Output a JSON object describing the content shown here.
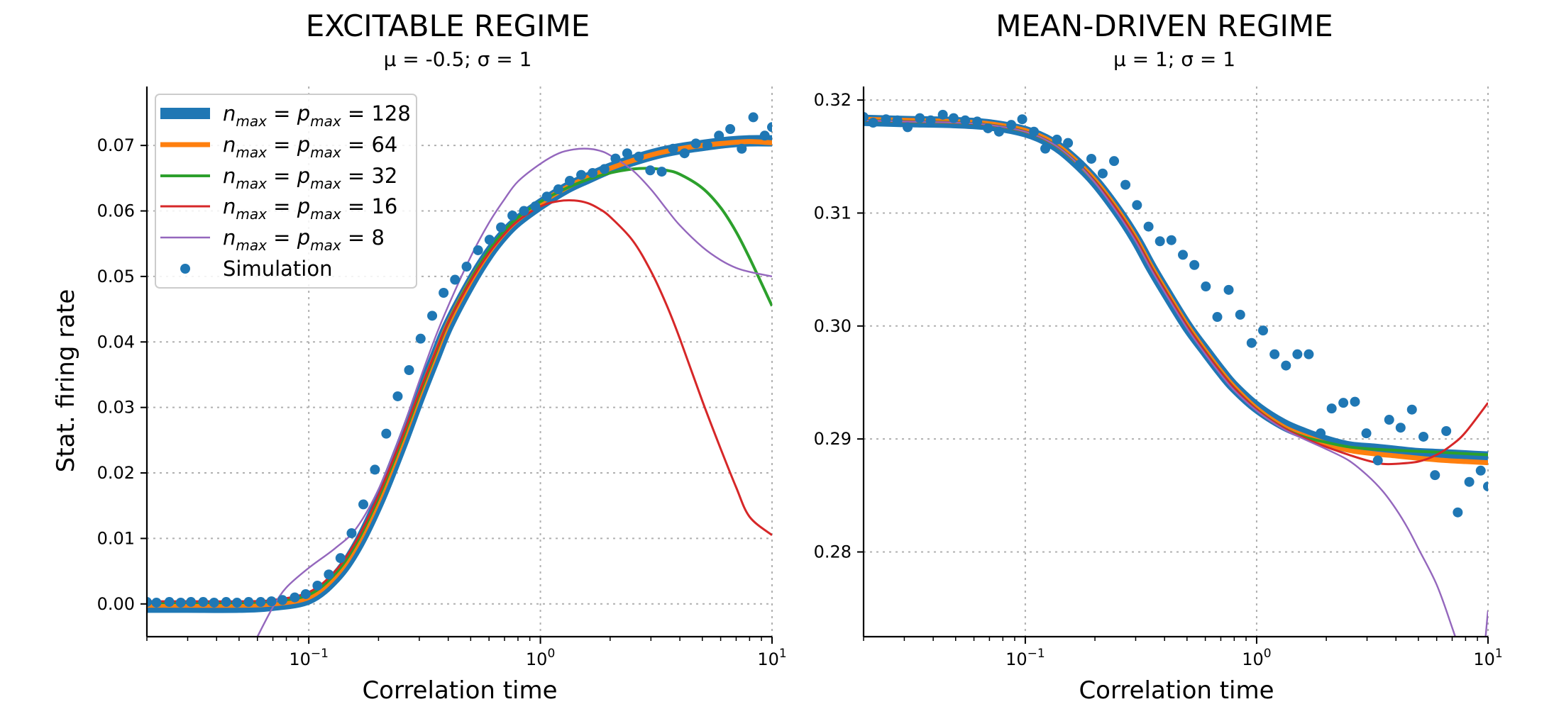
{
  "chart_data": [
    {
      "type": "line",
      "title": "EXCITABLE REGIME",
      "subtitle": "μ = -0.5; σ = 1",
      "xlabel": "Correlation time",
      "ylabel": "Stat. firing rate",
      "xscale": "log",
      "xlim": [
        0.02,
        10
      ],
      "ylim": [
        -0.005,
        0.079
      ],
      "xticks": [
        {
          "value": 0.1,
          "base": "10",
          "exp": "−1"
        },
        {
          "value": 1,
          "base": "10",
          "exp": "0"
        },
        {
          "value": 10,
          "base": "10",
          "exp": "1"
        }
      ],
      "yticks": [
        "0.00",
        "0.01",
        "0.02",
        "0.03",
        "0.04",
        "0.05",
        "0.06",
        "0.07"
      ],
      "grid": true,
      "legend": "upper-left",
      "series": [
        {
          "name": "n_max = p_max = 128",
          "name_parts": {
            "n": "n",
            "sub": "max",
            "p": "p",
            "val": "128"
          },
          "color": "#1f77b4",
          "width": 16,
          "x": [
            0.02,
            0.03,
            0.05,
            0.07,
            0.1,
            0.13,
            0.16,
            0.2,
            0.25,
            0.3,
            0.35,
            0.4,
            0.5,
            0.6,
            0.7,
            0.8,
            1.0,
            1.3,
            1.6,
            2.0,
            2.5,
            3.2,
            4.0,
            5.0,
            6.5,
            8.0,
            10.0
          ],
          "y": [
            -0.0005,
            -0.0005,
            -0.0005,
            -0.0002,
            0.0008,
            0.004,
            0.0085,
            0.0155,
            0.024,
            0.0315,
            0.0375,
            0.0425,
            0.049,
            0.0535,
            0.0565,
            0.0585,
            0.061,
            0.0635,
            0.065,
            0.0665,
            0.0677,
            0.0688,
            0.0695,
            0.07,
            0.0705,
            0.0707,
            0.0707
          ]
        },
        {
          "name": "n_max = p_max = 64",
          "name_parts": {
            "n": "n",
            "sub": "max",
            "p": "p",
            "val": "64"
          },
          "color": "#ff7f0e",
          "width": 7,
          "x": [
            0.02,
            0.03,
            0.05,
            0.07,
            0.1,
            0.13,
            0.16,
            0.2,
            0.25,
            0.3,
            0.35,
            0.4,
            0.5,
            0.6,
            0.7,
            0.8,
            1.0,
            1.3,
            1.6,
            2.0,
            2.5,
            3.2,
            4.0,
            5.0,
            6.5,
            8.0,
            10.0
          ],
          "y": [
            -0.0002,
            -0.0002,
            -0.0002,
            0.0,
            0.001,
            0.0042,
            0.0088,
            0.0158,
            0.0243,
            0.0318,
            0.0378,
            0.0428,
            0.0493,
            0.0537,
            0.0567,
            0.0587,
            0.0612,
            0.0636,
            0.0651,
            0.0665,
            0.0677,
            0.0688,
            0.0695,
            0.07,
            0.0704,
            0.0706,
            0.0704
          ]
        },
        {
          "name": "n_max = p_max = 32",
          "name_parts": {
            "n": "n",
            "sub": "max",
            "p": "p",
            "val": "32"
          },
          "color": "#2ca02c",
          "width": 4,
          "x": [
            0.02,
            0.03,
            0.05,
            0.07,
            0.1,
            0.13,
            0.16,
            0.2,
            0.25,
            0.3,
            0.35,
            0.4,
            0.5,
            0.6,
            0.7,
            0.8,
            1.0,
            1.3,
            1.6,
            2.0,
            2.5,
            3.0,
            3.5,
            4.0,
            5.0,
            6.0,
            7.0,
            8.0,
            10.0
          ],
          "y": [
            0.0002,
            0.0002,
            0.0002,
            0.0004,
            0.0014,
            0.0046,
            0.0092,
            0.0162,
            0.0246,
            0.032,
            0.038,
            0.043,
            0.0495,
            0.054,
            0.057,
            0.059,
            0.0614,
            0.0635,
            0.0648,
            0.0658,
            0.0664,
            0.0665,
            0.0662,
            0.0656,
            0.0635,
            0.0605,
            0.0568,
            0.0528,
            0.0455
          ]
        },
        {
          "name": "n_max = p_max = 16",
          "name_parts": {
            "n": "n",
            "sub": "max",
            "p": "p",
            "val": "16"
          },
          "color": "#d62728",
          "width": 3,
          "x": [
            0.02,
            0.03,
            0.05,
            0.07,
            0.1,
            0.13,
            0.16,
            0.2,
            0.25,
            0.3,
            0.35,
            0.4,
            0.5,
            0.6,
            0.7,
            0.8,
            1.0,
            1.2,
            1.4,
            1.6,
            1.8,
            2.0,
            2.5,
            3.0,
            3.5,
            4.0,
            5.0,
            6.0,
            7.0,
            8.0,
            10.0
          ],
          "y": [
            0.0004,
            0.0004,
            0.0004,
            0.0006,
            0.0018,
            0.005,
            0.0096,
            0.0166,
            0.025,
            0.0323,
            0.0382,
            0.043,
            0.0493,
            0.0536,
            0.0565,
            0.0585,
            0.0607,
            0.0615,
            0.0616,
            0.0612,
            0.0603,
            0.0591,
            0.0555,
            0.0508,
            0.0457,
            0.0405,
            0.031,
            0.0237,
            0.0178,
            0.0133,
            0.0105
          ]
        },
        {
          "name": "n_max = p_max = 8",
          "name_parts": {
            "n": "n",
            "sub": "max",
            "p": "p",
            "val": "8"
          },
          "color": "#9467bd",
          "width": 2.4,
          "x": [
            0.06,
            0.07,
            0.08,
            0.1,
            0.13,
            0.16,
            0.2,
            0.25,
            0.3,
            0.35,
            0.4,
            0.5,
            0.6,
            0.7,
            0.8,
            1.0,
            1.2,
            1.4,
            1.6,
            1.8,
            2.0,
            2.5,
            3.0,
            3.5,
            4.0,
            5.0,
            6.0,
            7.0,
            8.0,
            10.0
          ],
          "y": [
            -0.005,
            -0.0005,
            0.0025,
            0.0055,
            0.0085,
            0.0115,
            0.0175,
            0.026,
            0.034,
            0.0405,
            0.0455,
            0.053,
            0.0582,
            0.0618,
            0.0645,
            0.0672,
            0.0688,
            0.0694,
            0.0695,
            0.0692,
            0.0685,
            0.0662,
            0.0633,
            0.0603,
            0.0578,
            0.0545,
            0.0525,
            0.0513,
            0.0507,
            0.05
          ]
        },
        {
          "name": "Simulation",
          "color": "#1f77b4",
          "marker": "circle",
          "radius": 7,
          "x": [
            0.02,
            0.022,
            0.025,
            0.028,
            0.031,
            0.035,
            0.039,
            0.044,
            0.049,
            0.055,
            0.062,
            0.069,
            0.077,
            0.087,
            0.097,
            0.109,
            0.122,
            0.137,
            0.153,
            0.172,
            0.193,
            0.216,
            0.242,
            0.271,
            0.304,
            0.341,
            0.382,
            0.428,
            0.48,
            0.538,
            0.603,
            0.676,
            0.757,
            0.849,
            0.951,
            1.066,
            1.195,
            1.339,
            1.5,
            1.68,
            1.89,
            2.11,
            2.37,
            2.66,
            2.98,
            3.34,
            3.74,
            4.19,
            4.69,
            5.26,
            5.9,
            6.6,
            7.4,
            8.3,
            9.3,
            10.0
          ],
          "y": [
            0.0003,
            0.0002,
            0.0003,
            0.0002,
            0.0003,
            0.0003,
            0.0002,
            0.0003,
            0.0002,
            0.0003,
            0.0003,
            0.0004,
            0.0006,
            0.001,
            0.0015,
            0.0028,
            0.0045,
            0.007,
            0.0108,
            0.0152,
            0.0205,
            0.026,
            0.0317,
            0.0357,
            0.0405,
            0.044,
            0.0475,
            0.0495,
            0.0515,
            0.054,
            0.0556,
            0.0575,
            0.0593,
            0.06,
            0.0607,
            0.0622,
            0.0633,
            0.0646,
            0.0655,
            0.0658,
            0.0664,
            0.068,
            0.0688,
            0.0683,
            0.0662,
            0.066,
            0.0695,
            0.0688,
            0.0703,
            0.07,
            0.0715,
            0.0725,
            0.0695,
            0.0743,
            0.0715,
            0.0728
          ]
        }
      ]
    },
    {
      "type": "line",
      "title": "MEAN-DRIVEN REGIME",
      "subtitle": "μ = 1; σ = 1",
      "xlabel": "Correlation time",
      "ylabel": "",
      "xscale": "log",
      "xlim": [
        0.02,
        10
      ],
      "ylim": [
        0.2725,
        0.3212
      ],
      "xticks": [
        {
          "value": 0.1,
          "base": "10",
          "exp": "−1"
        },
        {
          "value": 1,
          "base": "10",
          "exp": "0"
        },
        {
          "value": 10,
          "base": "10",
          "exp": "1"
        }
      ],
      "yticks": [
        "0.28",
        "0.29",
        "0.30",
        "0.31",
        "0.32"
      ],
      "grid": true,
      "legend": "none",
      "series": [
        {
          "name": "n_max = p_max = 128",
          "color": "#1f77b4",
          "width": 16,
          "x": [
            0.02,
            0.03,
            0.05,
            0.07,
            0.1,
            0.13,
            0.16,
            0.2,
            0.25,
            0.3,
            0.35,
            0.4,
            0.5,
            0.6,
            0.7,
            0.8,
            1.0,
            1.3,
            1.6,
            2.0,
            2.5,
            3.2,
            4.0,
            5.0,
            6.5,
            8.0,
            10.0
          ],
          "y": [
            0.3182,
            0.3181,
            0.318,
            0.3178,
            0.3172,
            0.3162,
            0.3148,
            0.3128,
            0.3102,
            0.3077,
            0.3052,
            0.3032,
            0.3,
            0.2978,
            0.296,
            0.2946,
            0.2928,
            0.2913,
            0.2905,
            0.2898,
            0.2893,
            0.2891,
            0.2889,
            0.2887,
            0.2886,
            0.2885,
            0.2884
          ]
        },
        {
          "name": "n_max = p_max = 64",
          "color": "#ff7f0e",
          "width": 7,
          "x": [
            0.02,
            0.03,
            0.05,
            0.07,
            0.1,
            0.13,
            0.16,
            0.2,
            0.25,
            0.3,
            0.35,
            0.4,
            0.5,
            0.6,
            0.7,
            0.8,
            1.0,
            1.3,
            1.6,
            2.0,
            2.5,
            3.2,
            4.0,
            5.0,
            6.5,
            8.0,
            10.0
          ],
          "y": [
            0.3183,
            0.3182,
            0.3181,
            0.3179,
            0.3173,
            0.3163,
            0.3149,
            0.3129,
            0.3103,
            0.3078,
            0.3053,
            0.3033,
            0.3001,
            0.2978,
            0.296,
            0.2946,
            0.2927,
            0.2911,
            0.2903,
            0.2896,
            0.289,
            0.2887,
            0.2885,
            0.2883,
            0.2881,
            0.288,
            0.2879
          ]
        },
        {
          "name": "n_max = p_max = 32",
          "color": "#2ca02c",
          "width": 4,
          "x": [
            0.02,
            0.03,
            0.05,
            0.07,
            0.1,
            0.13,
            0.16,
            0.2,
            0.25,
            0.3,
            0.35,
            0.4,
            0.5,
            0.6,
            0.7,
            0.8,
            1.0,
            1.3,
            1.6,
            2.0,
            2.5,
            3.2,
            4.0,
            5.0,
            6.5,
            8.0,
            10.0
          ],
          "y": [
            0.3182,
            0.3181,
            0.318,
            0.3178,
            0.3172,
            0.3162,
            0.3148,
            0.3128,
            0.3102,
            0.3077,
            0.3052,
            0.3032,
            0.3,
            0.2977,
            0.2959,
            0.2945,
            0.2926,
            0.291,
            0.2902,
            0.2897,
            0.2893,
            0.2891,
            0.289,
            0.2889,
            0.2888,
            0.2887,
            0.2886
          ]
        },
        {
          "name": "n_max = p_max = 16",
          "color": "#d62728",
          "width": 3,
          "x": [
            0.02,
            0.03,
            0.05,
            0.07,
            0.1,
            0.13,
            0.16,
            0.2,
            0.25,
            0.3,
            0.35,
            0.4,
            0.5,
            0.6,
            0.7,
            0.8,
            1.0,
            1.3,
            1.6,
            2.0,
            2.5,
            3.0,
            3.5,
            4.0,
            5.0,
            6.0,
            7.0,
            8.0,
            10.0
          ],
          "y": [
            0.3182,
            0.3181,
            0.318,
            0.3178,
            0.3172,
            0.3162,
            0.3148,
            0.3128,
            0.3102,
            0.3077,
            0.3052,
            0.3032,
            0.3,
            0.2977,
            0.2959,
            0.2945,
            0.2926,
            0.291,
            0.2901,
            0.2893,
            0.2886,
            0.2881,
            0.2878,
            0.2878,
            0.288,
            0.2886,
            0.2895,
            0.2906,
            0.2932
          ]
        },
        {
          "name": "n_max = p_max = 8",
          "color": "#9467bd",
          "width": 2.4,
          "x": [
            0.02,
            0.03,
            0.05,
            0.07,
            0.1,
            0.13,
            0.16,
            0.2,
            0.25,
            0.3,
            0.35,
            0.4,
            0.5,
            0.6,
            0.7,
            0.8,
            1.0,
            1.3,
            1.6,
            2.0,
            2.5,
            3.0,
            3.5,
            4.0,
            4.5,
            5.0,
            6.0,
            7.0,
            8.0,
            9.0,
            10.0
          ],
          "y": [
            0.3182,
            0.3181,
            0.318,
            0.3178,
            0.3172,
            0.3162,
            0.3148,
            0.3127,
            0.31,
            0.3075,
            0.305,
            0.303,
            0.2998,
            0.2975,
            0.2957,
            0.2943,
            0.2925,
            0.2909,
            0.29,
            0.2891,
            0.2881,
            0.2868,
            0.2854,
            0.2838,
            0.2821,
            0.2803,
            0.2771,
            0.2733,
            0.2697,
            0.2664,
            0.2748
          ]
        },
        {
          "name": "Simulation",
          "color": "#1f77b4",
          "marker": "circle",
          "radius": 7,
          "x": [
            0.02,
            0.022,
            0.025,
            0.028,
            0.031,
            0.035,
            0.039,
            0.044,
            0.049,
            0.055,
            0.062,
            0.069,
            0.077,
            0.087,
            0.097,
            0.109,
            0.122,
            0.137,
            0.153,
            0.172,
            0.193,
            0.216,
            0.242,
            0.271,
            0.304,
            0.341,
            0.382,
            0.428,
            0.48,
            0.538,
            0.603,
            0.676,
            0.757,
            0.849,
            0.951,
            1.066,
            1.195,
            1.339,
            1.5,
            1.68,
            1.89,
            2.11,
            2.37,
            2.66,
            2.98,
            3.34,
            3.74,
            4.19,
            4.69,
            5.26,
            5.9,
            6.6,
            7.4,
            8.3,
            9.3,
            10.0
          ],
          "y": [
            0.3185,
            0.318,
            0.3183,
            0.3182,
            0.3176,
            0.3184,
            0.3182,
            0.3187,
            0.3184,
            0.3182,
            0.3181,
            0.3175,
            0.3172,
            0.3178,
            0.3183,
            0.3172,
            0.3157,
            0.3165,
            0.3162,
            0.3143,
            0.3148,
            0.3135,
            0.3146,
            0.3125,
            0.3107,
            0.3088,
            0.3075,
            0.3076,
            0.3063,
            0.3054,
            0.3035,
            0.3008,
            0.3032,
            0.301,
            0.2985,
            0.2996,
            0.2975,
            0.2965,
            0.2975,
            0.2975,
            0.2905,
            0.2927,
            0.2932,
            0.2933,
            0.2905,
            0.2881,
            0.2917,
            0.291,
            0.2926,
            0.2902,
            0.2868,
            0.2907,
            0.2835,
            0.2862,
            0.2872,
            0.2858
          ]
        }
      ]
    }
  ]
}
